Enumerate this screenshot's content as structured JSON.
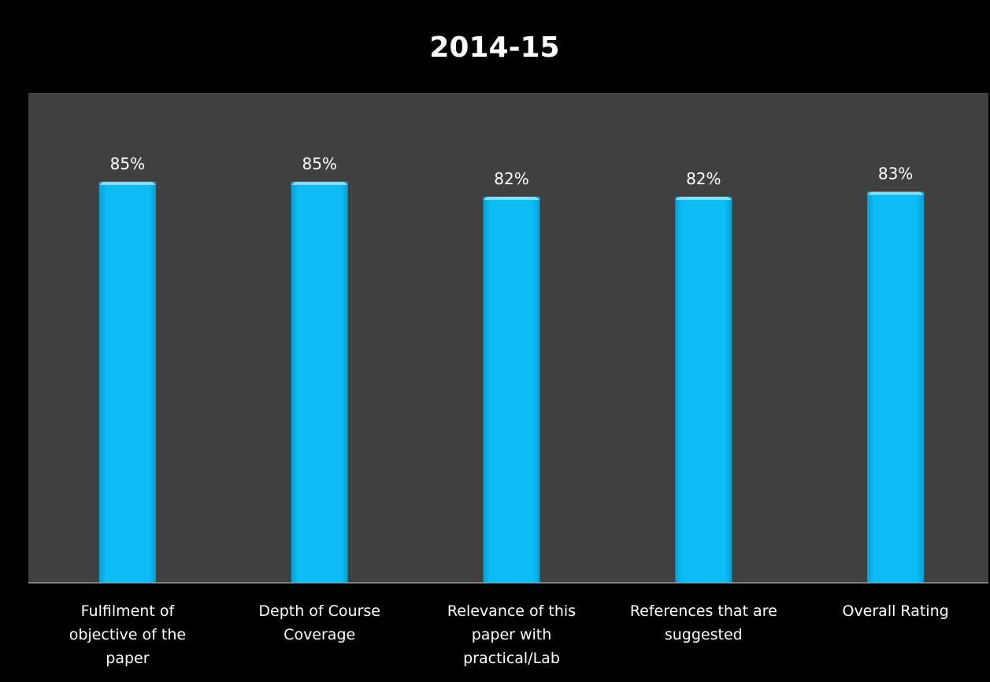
{
  "chart_data": {
    "type": "bar",
    "title": "2014-15",
    "categories": [
      [
        "Fulfilment of",
        "objective of the",
        "paper"
      ],
      [
        "Depth of Course",
        "Coverage"
      ],
      [
        "Relevance of this",
        "paper with",
        "practical/Lab"
      ],
      [
        "References that are",
        "suggested"
      ],
      [
        "Overall Rating"
      ]
    ],
    "values": [
      85,
      85,
      82,
      82,
      83
    ],
    "value_labels": [
      "85%",
      "85%",
      "82%",
      "82%",
      "83%"
    ],
    "ylim": [
      0,
      100
    ],
    "grid": false,
    "legend": "none",
    "colors": {
      "background": "#000000",
      "plot_area": "#404040",
      "bar": "#0bbcf5",
      "bar_top": "#7fe0ff",
      "text": "#ffffff",
      "axis": "#a0a0a0"
    }
  }
}
